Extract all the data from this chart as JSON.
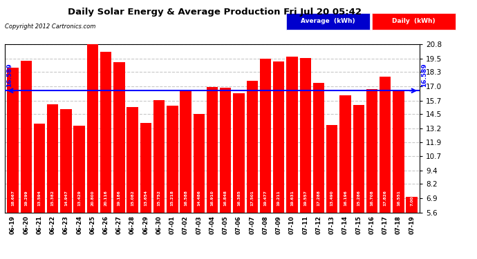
{
  "title": "Daily Solar Energy & Average Production Fri Jul 20 05:42",
  "copyright": "Copyright 2012 Cartronics.com",
  "average_label": "16.589",
  "average_value": 16.589,
  "bar_color": "#FF0000",
  "average_line_color": "#0000FF",
  "background_color": "#FFFFFF",
  "plot_bg_color": "#FFFFFF",
  "ylim": [
    5.6,
    20.8
  ],
  "yticks": [
    5.6,
    6.9,
    8.2,
    9.4,
    10.7,
    11.9,
    13.2,
    14.5,
    15.7,
    17.0,
    18.3,
    19.5,
    20.8
  ],
  "grid_color": "#C8C8C8",
  "categories": [
    "06-19",
    "06-20",
    "06-21",
    "06-22",
    "06-23",
    "06-24",
    "06-25",
    "06-26",
    "06-27",
    "06-28",
    "06-29",
    "06-30",
    "07-01",
    "07-02",
    "07-03",
    "07-04",
    "07-05",
    "07-06",
    "07-07",
    "07-08",
    "07-09",
    "07-10",
    "07-11",
    "07-12",
    "07-13",
    "07-14",
    "07-15",
    "07-16",
    "07-17",
    "07-18",
    "07-19"
  ],
  "values": [
    18.667,
    19.299,
    13.594,
    15.382,
    14.947,
    13.429,
    20.8,
    20.116,
    19.186,
    15.082,
    13.654,
    15.752,
    15.218,
    16.588,
    14.486,
    16.91,
    16.848,
    16.385,
    17.501,
    19.477,
    19.211,
    19.631,
    19.557,
    17.288,
    13.49,
    16.196,
    15.286,
    16.708,
    17.826,
    16.551,
    7.003
  ],
  "legend_avg_bg": "#0000CD",
  "legend_daily_bg": "#FF0000",
  "legend_avg_text": "Average  (kWh)",
  "legend_daily_text": "Daily  (kWh)"
}
